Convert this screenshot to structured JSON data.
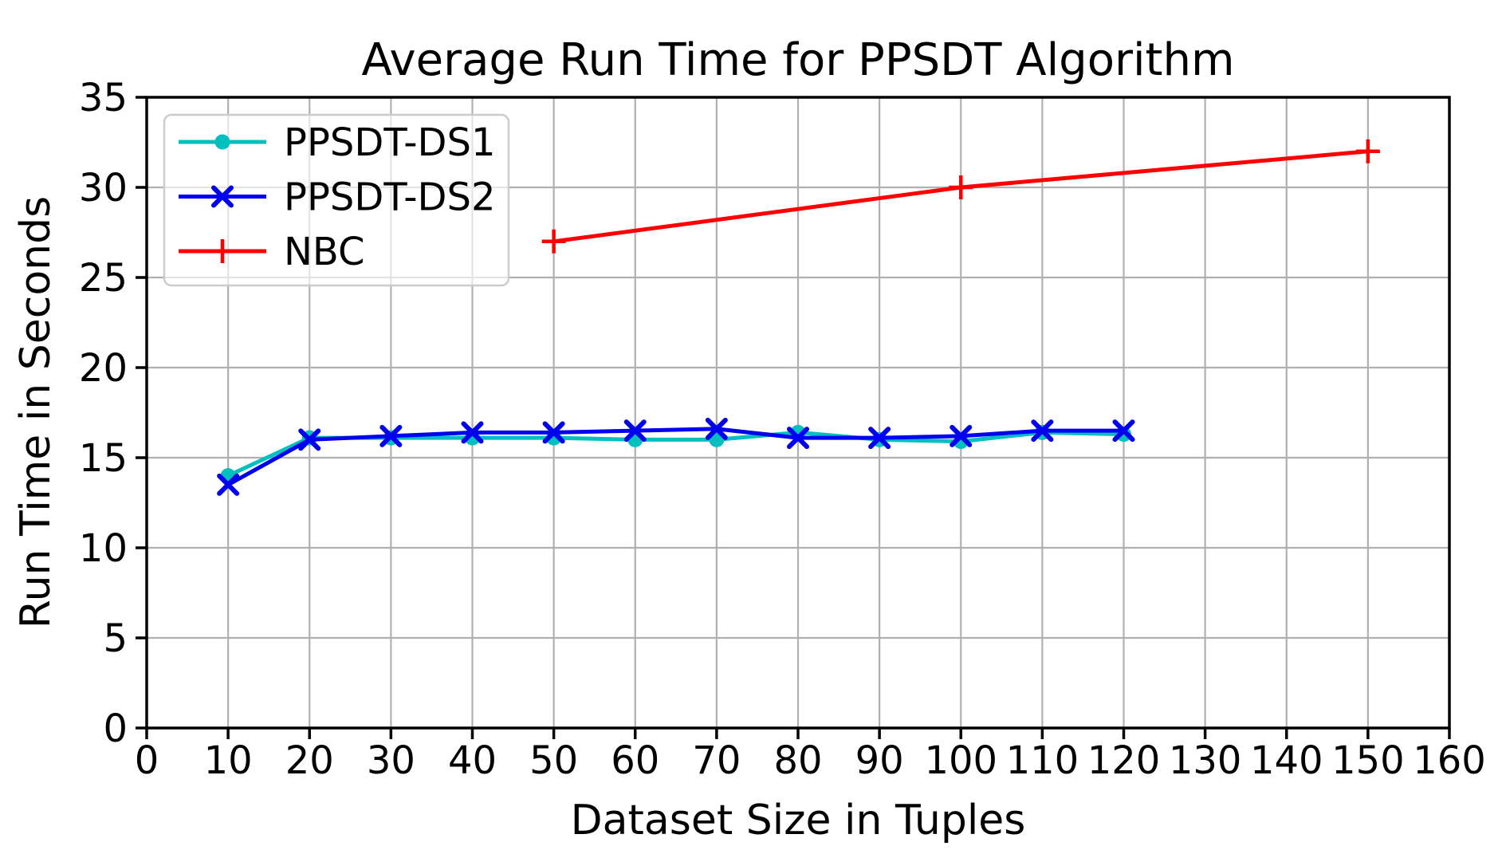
{
  "chart_data": {
    "type": "line",
    "title": "Average Run Time for PPSDT Algorithm",
    "xlabel": "Dataset Size in Tuples",
    "ylabel": "Run Time in Seconds",
    "xlim": [
      0,
      160
    ],
    "ylim": [
      0,
      35
    ],
    "xticks": [
      0,
      10,
      20,
      30,
      40,
      50,
      60,
      70,
      80,
      90,
      100,
      110,
      120,
      130,
      140,
      150,
      160
    ],
    "yticks": [
      0,
      5,
      10,
      15,
      20,
      25,
      30,
      35
    ],
    "grid": true,
    "grid_color": "#b0b0b0",
    "legend_position": "upper-left",
    "legend_edge_color": "#cccccc",
    "series": [
      {
        "name": "PPSDT-DS1",
        "color": "#00bfbf",
        "marker": "circle",
        "x": [
          10,
          20,
          30,
          40,
          50,
          60,
          70,
          80,
          90,
          100,
          110,
          120
        ],
        "y": [
          14.0,
          16.1,
          16.1,
          16.1,
          16.1,
          16.0,
          16.0,
          16.4,
          16.0,
          15.9,
          16.4,
          16.3
        ]
      },
      {
        "name": "PPSDT-DS2",
        "color": "#0000ee",
        "marker": "x",
        "x": [
          10,
          20,
          30,
          40,
          50,
          60,
          70,
          80,
          90,
          100,
          110,
          120
        ],
        "y": [
          13.5,
          16.0,
          16.2,
          16.4,
          16.4,
          16.5,
          16.6,
          16.1,
          16.1,
          16.2,
          16.5,
          16.5
        ]
      },
      {
        "name": "NBC",
        "color": "#ff0000",
        "marker": "plus",
        "x": [
          50,
          100,
          150
        ],
        "y": [
          27,
          30,
          32
        ]
      }
    ]
  }
}
